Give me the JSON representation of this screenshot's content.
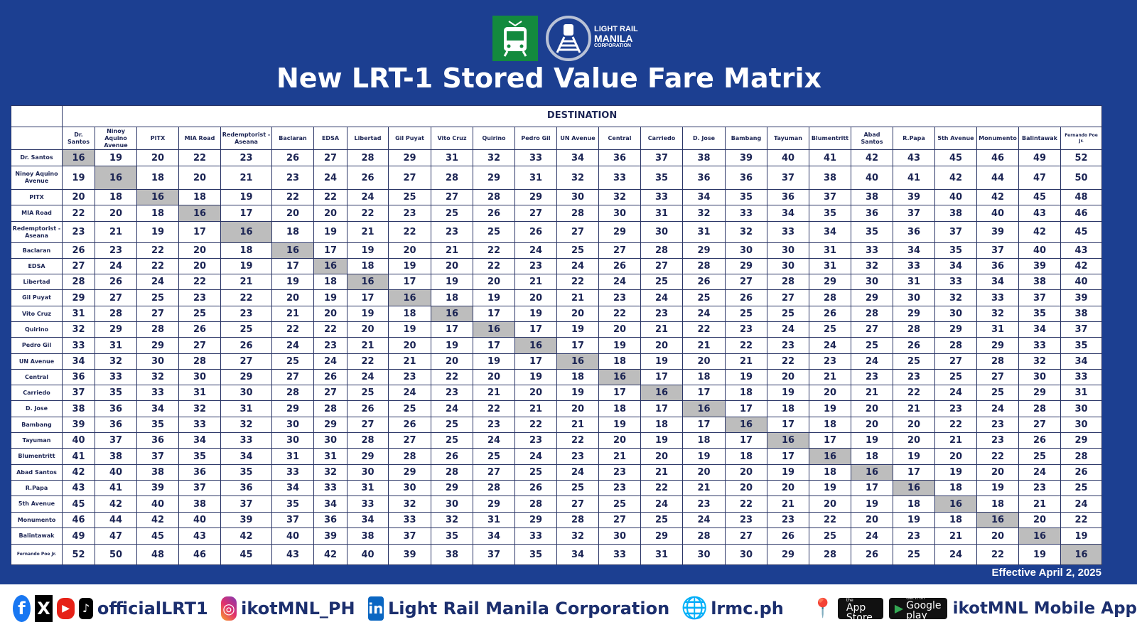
{
  "header": {
    "logo_text": [
      "LIGHT RAIL",
      "MANILA",
      "CORPORATION"
    ],
    "title": "New LRT-1 Stored Value Fare Matrix"
  },
  "table": {
    "destination_label": "DESTINATION",
    "stations": [
      "Dr. Santos",
      "Ninoy Aquino Avenue",
      "PITX",
      "MIA Road",
      "Redemptorist - Aseana",
      "Baclaran",
      "EDSA",
      "Libertad",
      "Gil Puyat",
      "Vito Cruz",
      "Quirino",
      "Pedro Gil",
      "UN Avenue",
      "Central",
      "Carriedo",
      "D. Jose",
      "Bambang",
      "Tayuman",
      "Blumentritt",
      "Abad Santos",
      "R.Papa",
      "5th Avenue",
      "Monumento",
      "Balintawak",
      "Fernando Poe Jr."
    ],
    "fares": [
      [
        16,
        19,
        20,
        22,
        23,
        26,
        27,
        28,
        29,
        31,
        32,
        33,
        34,
        36,
        37,
        38,
        39,
        40,
        41,
        42,
        43,
        45,
        46,
        49,
        52
      ],
      [
        19,
        16,
        18,
        20,
        21,
        23,
        24,
        26,
        27,
        28,
        29,
        31,
        32,
        33,
        35,
        36,
        36,
        37,
        38,
        40,
        41,
        42,
        44,
        47,
        50
      ],
      [
        20,
        18,
        16,
        18,
        19,
        22,
        22,
        24,
        25,
        27,
        28,
        29,
        30,
        32,
        33,
        34,
        35,
        36,
        37,
        38,
        39,
        40,
        42,
        45,
        48
      ],
      [
        22,
        20,
        18,
        16,
        17,
        20,
        20,
        22,
        23,
        25,
        26,
        27,
        28,
        30,
        31,
        32,
        33,
        34,
        35,
        36,
        37,
        38,
        40,
        43,
        46
      ],
      [
        23,
        21,
        19,
        17,
        16,
        18,
        19,
        21,
        22,
        23,
        25,
        26,
        27,
        29,
        30,
        31,
        32,
        33,
        34,
        35,
        36,
        37,
        39,
        42,
        45
      ],
      [
        26,
        23,
        22,
        20,
        18,
        16,
        17,
        19,
        20,
        21,
        22,
        24,
        25,
        27,
        28,
        29,
        30,
        30,
        31,
        33,
        34,
        35,
        37,
        40,
        43
      ],
      [
        27,
        24,
        22,
        20,
        19,
        17,
        16,
        18,
        19,
        20,
        22,
        23,
        24,
        26,
        27,
        28,
        29,
        30,
        31,
        32,
        33,
        34,
        36,
        39,
        42
      ],
      [
        28,
        26,
        24,
        22,
        21,
        19,
        18,
        16,
        17,
        19,
        20,
        21,
        22,
        24,
        25,
        26,
        27,
        28,
        29,
        30,
        31,
        33,
        34,
        38,
        40
      ],
      [
        29,
        27,
        25,
        23,
        22,
        20,
        19,
        17,
        16,
        18,
        19,
        20,
        21,
        23,
        24,
        25,
        26,
        27,
        28,
        29,
        30,
        32,
        33,
        37,
        39
      ],
      [
        31,
        28,
        27,
        25,
        23,
        21,
        20,
        19,
        18,
        16,
        17,
        19,
        20,
        22,
        23,
        24,
        25,
        25,
        26,
        28,
        29,
        30,
        32,
        35,
        38
      ],
      [
        32,
        29,
        28,
        26,
        25,
        22,
        22,
        20,
        19,
        17,
        16,
        17,
        19,
        20,
        21,
        22,
        23,
        24,
        25,
        27,
        28,
        29,
        31,
        34,
        37
      ],
      [
        33,
        31,
        29,
        27,
        26,
        24,
        23,
        21,
        20,
        19,
        17,
        16,
        17,
        19,
        20,
        21,
        22,
        23,
        24,
        25,
        26,
        28,
        29,
        33,
        35
      ],
      [
        34,
        32,
        30,
        28,
        27,
        25,
        24,
        22,
        21,
        20,
        19,
        17,
        16,
        18,
        19,
        20,
        21,
        22,
        23,
        24,
        25,
        27,
        28,
        32,
        34
      ],
      [
        36,
        33,
        32,
        30,
        29,
        27,
        26,
        24,
        23,
        22,
        20,
        19,
        18,
        16,
        17,
        18,
        19,
        20,
        21,
        23,
        23,
        25,
        27,
        30,
        33
      ],
      [
        37,
        35,
        33,
        31,
        30,
        28,
        27,
        25,
        24,
        23,
        21,
        20,
        19,
        17,
        16,
        17,
        18,
        19,
        20,
        21,
        22,
        24,
        25,
        29,
        31
      ],
      [
        38,
        36,
        34,
        32,
        31,
        29,
        28,
        26,
        25,
        24,
        22,
        21,
        20,
        18,
        17,
        16,
        17,
        18,
        19,
        20,
        21,
        23,
        24,
        28,
        30
      ],
      [
        39,
        36,
        35,
        33,
        32,
        30,
        29,
        27,
        26,
        25,
        23,
        22,
        21,
        19,
        18,
        17,
        16,
        17,
        18,
        20,
        20,
        22,
        23,
        27,
        30
      ],
      [
        40,
        37,
        36,
        34,
        33,
        30,
        30,
        28,
        27,
        25,
        24,
        23,
        22,
        20,
        19,
        18,
        17,
        16,
        17,
        19,
        20,
        21,
        23,
        26,
        29
      ],
      [
        41,
        38,
        37,
        35,
        34,
        31,
        31,
        29,
        28,
        26,
        25,
        24,
        23,
        21,
        20,
        19,
        18,
        17,
        16,
        18,
        19,
        20,
        22,
        25,
        28
      ],
      [
        42,
        40,
        38,
        36,
        35,
        33,
        32,
        30,
        29,
        28,
        27,
        25,
        24,
        23,
        21,
        20,
        20,
        19,
        18,
        16,
        17,
        19,
        20,
        24,
        26
      ],
      [
        43,
        41,
        39,
        37,
        36,
        34,
        33,
        31,
        30,
        29,
        28,
        26,
        25,
        23,
        22,
        21,
        20,
        20,
        19,
        17,
        16,
        18,
        19,
        23,
        25
      ],
      [
        45,
        42,
        40,
        38,
        37,
        35,
        34,
        33,
        32,
        30,
        29,
        28,
        27,
        25,
        24,
        23,
        22,
        21,
        20,
        19,
        18,
        16,
        18,
        21,
        24
      ],
      [
        46,
        44,
        42,
        40,
        39,
        37,
        36,
        34,
        33,
        32,
        31,
        29,
        28,
        27,
        25,
        24,
        23,
        23,
        22,
        20,
        19,
        18,
        16,
        20,
        22
      ],
      [
        49,
        47,
        45,
        43,
        42,
        40,
        39,
        38,
        37,
        35,
        34,
        33,
        32,
        30,
        29,
        28,
        27,
        26,
        25,
        24,
        23,
        21,
        20,
        16,
        19
      ],
      [
        52,
        50,
        48,
        46,
        45,
        43,
        42,
        40,
        39,
        38,
        37,
        35,
        34,
        33,
        31,
        30,
        30,
        29,
        28,
        26,
        25,
        24,
        22,
        19,
        16
      ]
    ]
  },
  "effective": "Effective April 2, 2025",
  "footer": {
    "social_handle": "officialLRT1",
    "instagram": "ikotMNL_PH",
    "linkedin": "Light Rail Manila Corporation",
    "website": "lrmc.ph",
    "app_store": "App Store",
    "app_store_pre": "Available on the",
    "google_play": "Google play",
    "google_play_pre": "Get it on",
    "app_label": "ikotMNL Mobile App"
  },
  "colors": {
    "background": "#1c3f91",
    "text": "#1c2554",
    "diagonal": "#bdbdbd",
    "logo_green": "#138a3e"
  }
}
